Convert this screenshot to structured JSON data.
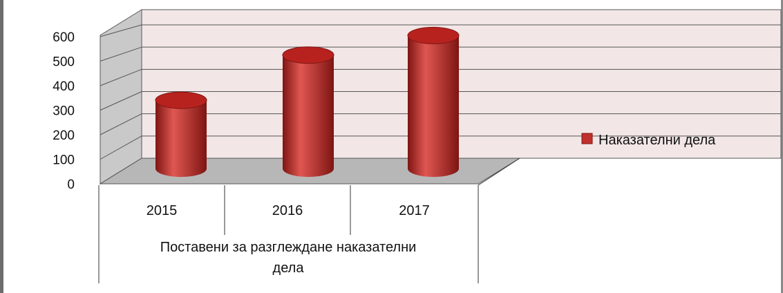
{
  "chart_data": {
    "type": "bar",
    "style": "3d-cylinder",
    "title": "",
    "categories": [
      "2015",
      "2016",
      "2017"
    ],
    "category_group_label": "Поставени за разглеждане наказателни дела",
    "series": [
      {
        "name": "Наказателни дела",
        "values": [
          280,
          465,
          545
        ],
        "color": "#c0302c"
      }
    ],
    "y_ticks": [
      "0",
      "100",
      "200",
      "300",
      "400",
      "500",
      "600"
    ],
    "ylim": [
      0,
      600
    ],
    "grid": true,
    "legend_position": "right",
    "colors": {
      "wall": "#f2e6e6",
      "side_wall": "#c9c9c9",
      "floor": "#b7b7b7",
      "grid": "#555555",
      "bar_main": "#c0302c",
      "bar_dark": "#7e1512",
      "bar_light": "#e05752",
      "bar_top": "#b8221e"
    }
  }
}
